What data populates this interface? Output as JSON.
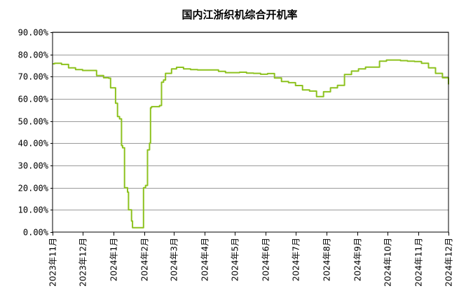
{
  "chart_data": {
    "type": "line",
    "title": "国内江浙织机综合开机率",
    "xlabel": "",
    "ylabel": "",
    "ylim": [
      0,
      90
    ],
    "y_ticks": [
      "0.00%",
      "10.00%",
      "20.00%",
      "30.00%",
      "40.00%",
      "50.00%",
      "60.00%",
      "70.00%",
      "80.00%",
      "90.00%"
    ],
    "y_tick_values": [
      0,
      10,
      20,
      30,
      40,
      50,
      60,
      70,
      80,
      90
    ],
    "x_ticks": [
      "2023年11月",
      "2023年12月",
      "2024年1月",
      "2024年2月",
      "2024年3月",
      "2024年4月",
      "2024年5月",
      "2024年6月",
      "2024年7月",
      "2024年8月",
      "2024年9月",
      "2024年10月",
      "2024年11月",
      "2024年12月"
    ],
    "x_tick_values": [
      "2023-11-01",
      "2023-12-01",
      "2024-01-01",
      "2024-02-01",
      "2024-03-01",
      "2024-04-01",
      "2024-05-01",
      "2024-06-01",
      "2024-07-01",
      "2024-08-01",
      "2024-09-01",
      "2024-10-01",
      "2024-11-01",
      "2024-12-01"
    ],
    "xlim": [
      "2023-11-01",
      "2024-12-01"
    ],
    "grid": true,
    "legend": "none",
    "color": "#8dc21f",
    "series": [
      {
        "x": [
          "2023-11-01",
          "2023-11-03",
          "2023-11-10",
          "2023-11-17",
          "2023-11-24",
          "2023-12-01",
          "2023-12-08",
          "2023-12-15",
          "2023-12-22",
          "2023-12-27",
          "2023-12-29",
          "2024-01-03",
          "2024-01-05",
          "2024-01-07",
          "2024-01-09",
          "2024-01-10",
          "2024-01-12",
          "2024-01-15",
          "2024-01-16",
          "2024-01-19",
          "2024-01-20",
          "2024-01-22",
          "2024-01-24",
          "2024-01-31",
          "2024-02-02",
          "2024-02-04",
          "2024-02-06",
          "2024-02-07",
          "2024-02-08",
          "2024-02-16",
          "2024-02-18",
          "2024-02-20",
          "2024-02-22",
          "2024-02-28",
          "2024-03-04",
          "2024-03-11",
          "2024-03-18",
          "2024-03-25",
          "2024-04-01",
          "2024-04-08",
          "2024-04-15",
          "2024-04-22",
          "2024-04-29",
          "2024-05-06",
          "2024-05-13",
          "2024-05-20",
          "2024-05-27",
          "2024-06-03",
          "2024-06-10",
          "2024-06-17",
          "2024-06-24",
          "2024-07-01",
          "2024-07-08",
          "2024-07-15",
          "2024-07-22",
          "2024-07-29",
          "2024-08-05",
          "2024-08-12",
          "2024-08-19",
          "2024-08-26",
          "2024-09-02",
          "2024-09-09",
          "2024-09-16",
          "2024-09-23",
          "2024-09-30",
          "2024-10-07",
          "2024-10-14",
          "2024-10-21",
          "2024-10-28",
          "2024-11-04",
          "2024-11-11",
          "2024-11-18",
          "2024-11-25",
          "2024-12-01"
        ],
        "values": [
          75.8,
          76.0,
          75.5,
          74.0,
          73.2,
          72.8,
          72.8,
          70.5,
          69.5,
          69.3,
          65.0,
          58.0,
          52.0,
          51.0,
          39.0,
          38.0,
          20.0,
          18.0,
          10.0,
          5.0,
          2.0,
          2.0,
          2.0,
          20.0,
          21.0,
          37.0,
          40.0,
          56.0,
          56.5,
          57.0,
          67.5,
          68.5,
          71.5,
          73.5,
          74.2,
          73.5,
          73.2,
          73.0,
          73.0,
          73.0,
          72.4,
          71.8,
          71.8,
          72.0,
          71.6,
          71.5,
          71.1,
          71.4,
          69.4,
          67.8,
          67.3,
          66.0,
          64.0,
          63.5,
          61.0,
          63.2,
          65.0,
          66.1,
          71.0,
          72.5,
          73.5,
          74.3,
          74.3,
          77.0,
          77.5,
          77.5,
          77.2,
          77.0,
          76.8,
          76.0,
          74.0,
          71.5,
          69.5,
          67.0
        ]
      },
      {
        "x": [
          "2024-12-01"
        ],
        "values": [
          66.5
        ]
      }
    ]
  }
}
